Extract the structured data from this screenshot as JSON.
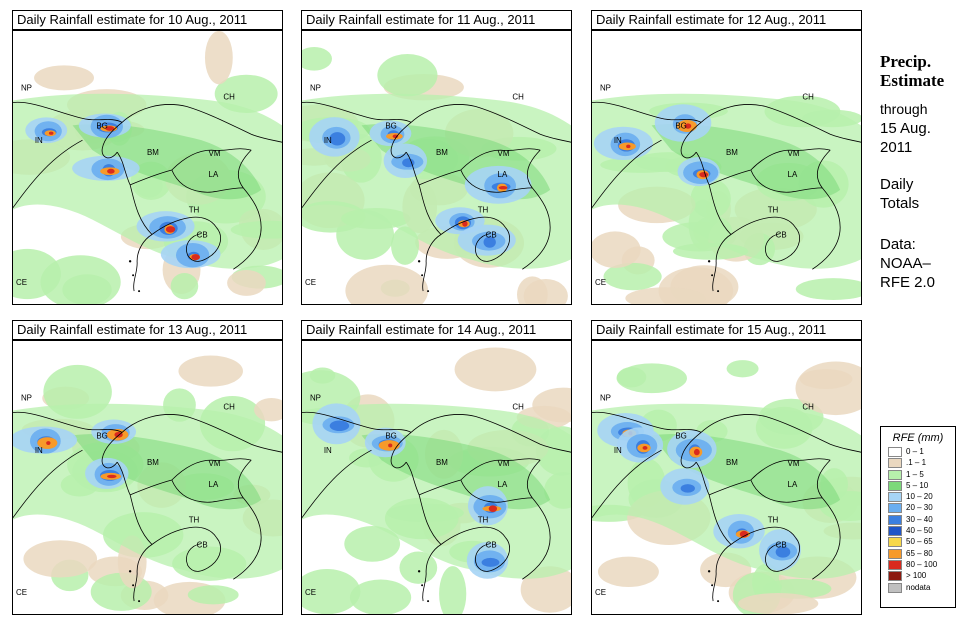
{
  "panels": [
    {
      "title": "Daily Rainfall estimate for  10 Aug., 2011",
      "rain_hotspots": [
        "IN",
        "BG",
        "BM",
        "TH",
        "CB"
      ]
    },
    {
      "title": "Daily Rainfall estimate for  11 Aug., 2011",
      "rain_hotspots": [
        "IN",
        "BG",
        "BM",
        "LA",
        "TH",
        "CB"
      ]
    },
    {
      "title": "Daily Rainfall estimate for  12 Aug., 2011",
      "rain_hotspots": [
        "IN",
        "BG",
        "BM"
      ]
    },
    {
      "title": "Daily Rainfall estimate for  13 Aug., 2011",
      "rain_hotspots": [
        "IN",
        "BG",
        "BM"
      ]
    },
    {
      "title": "Daily Rainfall estimate for  14 Aug., 2011",
      "rain_hotspots": [
        "NP",
        "BG",
        "LA",
        "CB"
      ]
    },
    {
      "title": "Daily Rainfall estimate for  15 Aug., 2011",
      "rain_hotspots": [
        "NP",
        "BG",
        "IN",
        "BM",
        "TH",
        "CB"
      ]
    }
  ],
  "country_labels": [
    "NP",
    "CH",
    "BG",
    "IN",
    "BM",
    "VM",
    "LA",
    "TH",
    "CB",
    "CE"
  ],
  "side": {
    "heading_1": "Precip.",
    "heading_2": "Estimate",
    "through": "through",
    "date_1": "15 Aug.",
    "date_2": "2011",
    "daily_1": "Daily",
    "daily_2": "Totals",
    "data_1": "Data:",
    "data_2": "NOAA–",
    "data_3": "RFE 2.0"
  },
  "legend": {
    "title": "RFE (mm)",
    "entries": [
      {
        "label": "0 – 1",
        "color": "#ffffff"
      },
      {
        "label": ".1 – 1",
        "color": "#ead8c0"
      },
      {
        "label": "1 – 5",
        "color": "#b7f0ac"
      },
      {
        "label": "5 – 10",
        "color": "#7cd97a"
      },
      {
        "label": "10 – 20",
        "color": "#a6d4f5"
      },
      {
        "label": "20 – 30",
        "color": "#6aaef0"
      },
      {
        "label": "30 – 40",
        "color": "#3b7fe0"
      },
      {
        "label": "40 – 50",
        "color": "#1f55c8"
      },
      {
        "label": "50 – 65",
        "color": "#f7d84a"
      },
      {
        "label": "65 – 80",
        "color": "#f79a2a"
      },
      {
        "label": "80 – 100",
        "color": "#d92a1e"
      },
      {
        "label": "> 100",
        "color": "#8c1a10"
      },
      {
        "label": "nodata",
        "color": "#c0c0c0"
      }
    ]
  }
}
